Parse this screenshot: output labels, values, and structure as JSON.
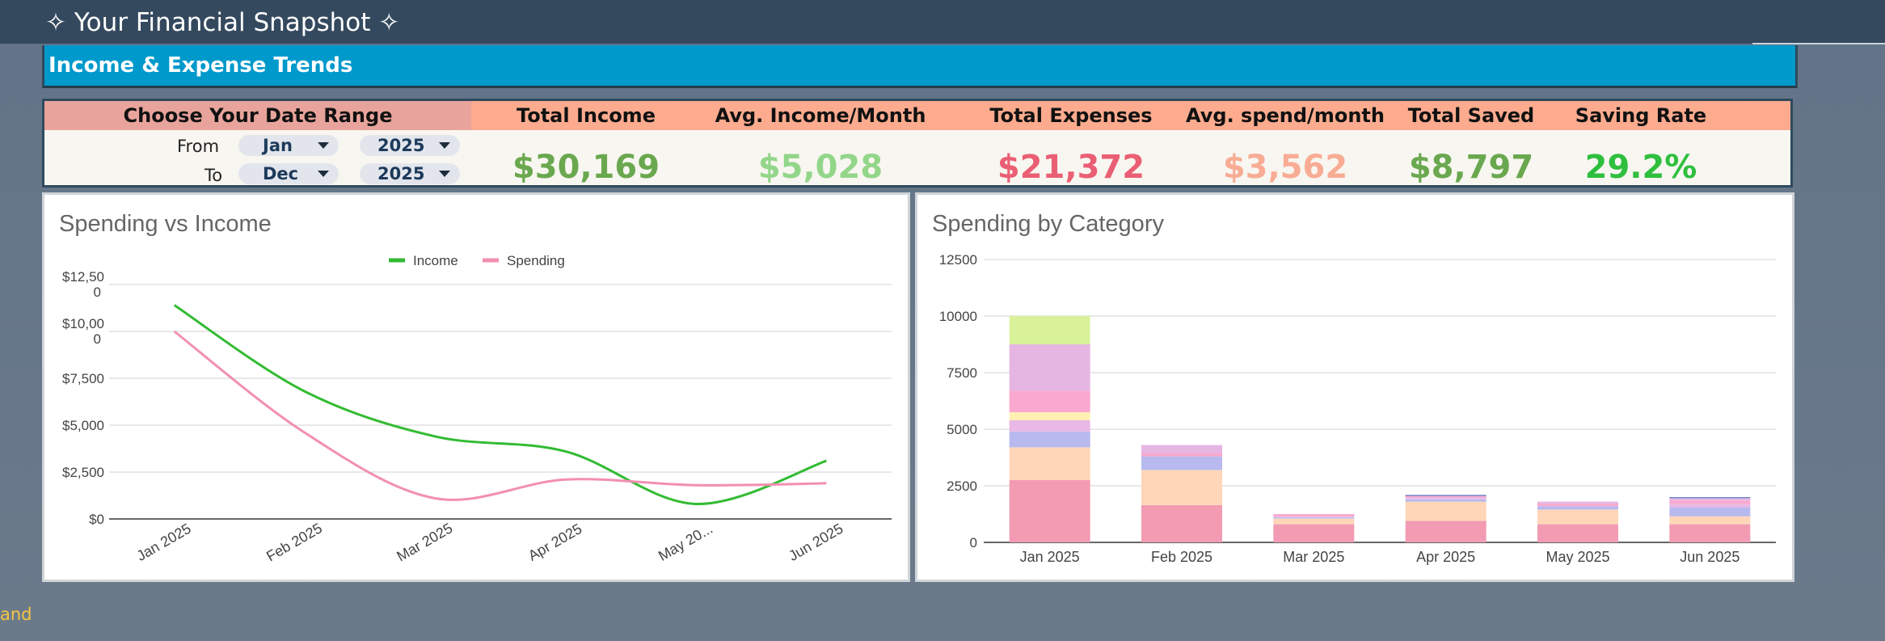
{
  "header": {
    "title": "✧ Your Financial Snapshot ✧"
  },
  "section": {
    "title": "Income & Expense Trends"
  },
  "kpi": {
    "range_label": "Choose Your Date Range",
    "from_label": "From",
    "to_label": "To",
    "from_month": "Jan",
    "from_year": "2025",
    "to_month": "Dec",
    "to_year": "2025",
    "metrics": [
      {
        "label": "Total Income",
        "value": "$30,169",
        "color": "#6aa84f"
      },
      {
        "label": "Avg. Income/Month",
        "value": "$5,028",
        "color": "#93d68a"
      },
      {
        "label": "Total Expenses",
        "value": "$21,372",
        "color": "#ea5f74"
      },
      {
        "label": "Avg. spend/month",
        "value": "$3,562",
        "color": "#f8ac94"
      },
      {
        "label": "Total Saved",
        "value": "$8,797",
        "color": "#6aa84f"
      },
      {
        "label": "Saving Rate",
        "value": "29.2%",
        "color": "#2fbf3f"
      }
    ]
  },
  "chart_data": [
    {
      "type": "line",
      "title": "Spending vs Income",
      "categories": [
        "Jan 2025",
        "Feb 2025",
        "Mar 2025",
        "Apr 2025",
        "May 20...",
        "Jun 2025"
      ],
      "y_ticks": [
        "$0",
        "$2,500",
        "$5,000",
        "$7,500",
        "$10,00\n0",
        "$12,50\n0"
      ],
      "ylim": [
        0,
        12500
      ],
      "legend_position": "top",
      "series": [
        {
          "name": "Income",
          "color": "#33bb33",
          "values": [
            11400,
            6800,
            4400,
            3600,
            800,
            3100
          ]
        },
        {
          "name": "Spending",
          "color": "#f28fb1",
          "values": [
            10000,
            4600,
            1100,
            2100,
            1800,
            1900
          ]
        }
      ]
    },
    {
      "type": "bar",
      "stacked": true,
      "title": "Spending by Category",
      "categories": [
        "Jan 2025",
        "Feb 2025",
        "Mar 2025",
        "Apr 2025",
        "May 2025",
        "Jun 2025"
      ],
      "y_ticks": [
        "0",
        "2500",
        "5000",
        "7500",
        "10000",
        "12500"
      ],
      "ylim": [
        0,
        12500
      ],
      "series": [
        {
          "color": "#f29bb3",
          "values": [
            2750,
            1650,
            800,
            950,
            800,
            800
          ]
        },
        {
          "color": "#ffd6b8",
          "values": [
            1450,
            1550,
            250,
            850,
            650,
            350
          ]
        },
        {
          "color": "#b8b9ee",
          "values": [
            700,
            600,
            50,
            100,
            150,
            400
          ]
        },
        {
          "color": "#e9b8e4",
          "values": [
            500,
            0,
            50,
            100,
            0,
            150
          ]
        },
        {
          "color": "#fff0b3",
          "values": [
            350,
            0,
            0,
            0,
            0,
            0
          ]
        },
        {
          "color": "#f9a8cf",
          "values": [
            950,
            150,
            100,
            50,
            100,
            150
          ]
        },
        {
          "color": "#e6b6e3",
          "values": [
            2050,
            350,
            0,
            0,
            100,
            100
          ]
        },
        {
          "color": "#d9f29a",
          "values": [
            1250,
            0,
            0,
            0,
            0,
            0
          ]
        },
        {
          "color": "#6b7fc2",
          "values": [
            0,
            0,
            0,
            50,
            0,
            50
          ]
        }
      ]
    }
  ],
  "footer": {
    "fragment": "and"
  }
}
